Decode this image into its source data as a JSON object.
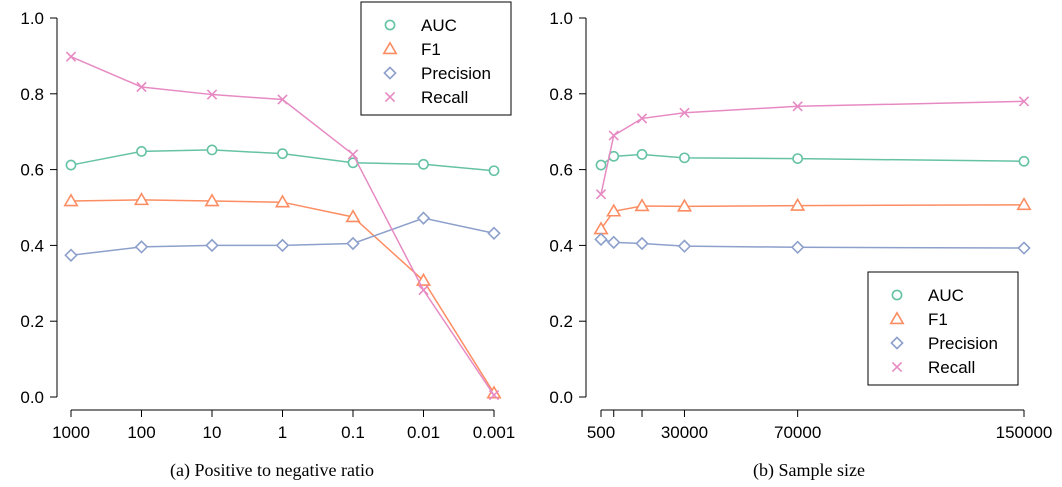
{
  "colors": {
    "AUC": "#66c2a5",
    "F1": "#fc8d62",
    "Precision": "#8da0cb",
    "Recall": "#e78ac3"
  },
  "markers": {
    "AUC": "circle",
    "F1": "triangle",
    "Precision": "diamond",
    "Recall": "cross"
  },
  "chart_data": [
    {
      "type": "line",
      "caption": "(a) Positive to negative ratio",
      "x_scale": "categorical",
      "categories": [
        "1000",
        "100",
        "10",
        "1",
        "0.1",
        "0.01",
        "0.001"
      ],
      "ylim": [
        0,
        1
      ],
      "y_ticks": [
        "0.0",
        "0.2",
        "0.4",
        "0.6",
        "0.8",
        "1.0"
      ],
      "legend": {
        "position": "top-right",
        "entries": [
          "AUC",
          "F1",
          "Precision",
          "Recall"
        ]
      },
      "grid": false,
      "series": [
        {
          "name": "AUC",
          "values": [
            0.612,
            0.648,
            0.652,
            0.642,
            0.618,
            0.614,
            0.597
          ]
        },
        {
          "name": "F1",
          "values": [
            0.517,
            0.52,
            0.517,
            0.514,
            0.475,
            0.307,
            0.01
          ]
        },
        {
          "name": "Precision",
          "values": [
            0.374,
            0.396,
            0.4,
            0.4,
            0.405,
            0.472,
            0.432
          ]
        },
        {
          "name": "Recall",
          "values": [
            0.898,
            0.818,
            0.798,
            0.785,
            0.64,
            0.282,
            0.005
          ]
        }
      ]
    },
    {
      "type": "line",
      "caption": "(b) Sample size",
      "x_scale": "linear",
      "xlim": [
        500,
        150000
      ],
      "x_ticks": [
        500,
        5000,
        15000,
        30000,
        70000,
        150000
      ],
      "x_tick_labels": [
        "500",
        "",
        "",
        "30000",
        "70000",
        "150000"
      ],
      "x": [
        500,
        5000,
        15000,
        30000,
        70000,
        150000
      ],
      "ylim": [
        0,
        1
      ],
      "y_ticks": [
        "0.0",
        "0.2",
        "0.4",
        "0.6",
        "0.8",
        "1.0"
      ],
      "legend": {
        "position": "bottom-right",
        "entries": [
          "AUC",
          "F1",
          "Precision",
          "Recall"
        ]
      },
      "grid": false,
      "series": [
        {
          "name": "AUC",
          "values": [
            0.612,
            0.635,
            0.64,
            0.631,
            0.629,
            0.622
          ]
        },
        {
          "name": "F1",
          "values": [
            0.443,
            0.49,
            0.504,
            0.503,
            0.505,
            0.507
          ]
        },
        {
          "name": "Precision",
          "values": [
            0.416,
            0.408,
            0.405,
            0.398,
            0.395,
            0.393
          ]
        },
        {
          "name": "Recall",
          "values": [
            0.535,
            0.69,
            0.735,
            0.75,
            0.767,
            0.78
          ]
        }
      ]
    }
  ]
}
